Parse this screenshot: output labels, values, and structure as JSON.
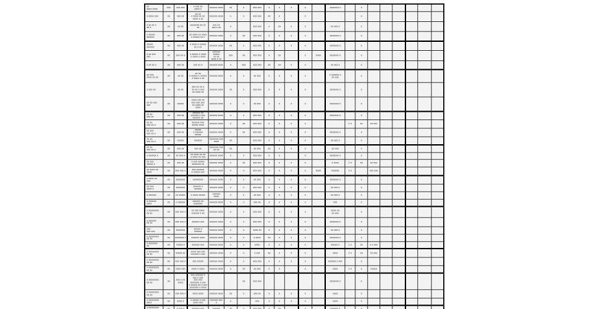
{
  "page": {
    "background": "#ffffff"
  },
  "table": {
    "colors": {
      "grid": "#2e2e2e",
      "grid_thick": "#000000",
      "cell_background": "#f3f3f3",
      "cell_rim": "#ffffff",
      "text": "#161616",
      "page": "#ffffff"
    },
    "column_count": 22,
    "row_count": 34,
    "thick_cols_after": [
      3,
      11,
      13,
      19
    ],
    "thick_rows_after": [
      4,
      7,
      10,
      14,
      18,
      22,
      27,
      30,
      33
    ],
    "rows": [
      [
        "xx\nxxxx xxxx",
        "xxx",
        "xxx xxx",
        "x  xxx xx\nxxxx x",
        "xxxxxx xxxx",
        "xx",
        "x",
        "xxx xxx",
        "x",
        "x",
        "x",
        "x",
        "",
        "xxxxxxx x",
        "",
        "x",
        "",
        "",
        "",
        "",
        "",
        ""
      ],
      [
        "x xxxx xxx",
        "xx",
        "xxx xx",
        "xx xx\nx xxxx xx xx\nxxxx x xx",
        "xxxxxx xxxx",
        "x",
        "x",
        "xxx xxx",
        "xx",
        "x",
        "",
        "x",
        "",
        "",
        "",
        "x",
        "",
        "",
        "",
        "",
        "",
        ""
      ],
      [
        "x xx  xx x\nxx x",
        "xx",
        "xx xx",
        "xxxxxxx xx  xx\nxx",
        "xxx xx\nxxx x xx",
        "x",
        "",
        "xxx xxx",
        "x",
        "xx",
        "x",
        "x",
        "",
        "xx xxx x",
        "",
        "x",
        "",
        "",
        "",
        "",
        "",
        ""
      ],
      [
        "x xxxxx\nxxxxxx",
        "xx",
        "xxx xx",
        "xx xxxx xx xxxx\nx xxxxx xx x",
        "xxxxxx xxxx",
        "x",
        "xx",
        "xxx xxx",
        "x",
        "x",
        "x",
        "x",
        "",
        "xxxxxxx x",
        "",
        "x",
        "",
        "",
        "",
        "",
        "",
        ""
      ],
      [
        "xxxxx\nxxxxxx",
        "xx",
        "xxx xx",
        "x xxxx x xxxxx\nxx x  xx",
        "xxxxxx xxxx",
        "xx",
        "x",
        "xxx xxx",
        "x",
        "x",
        "x",
        "x",
        "",
        "xxxxxxx x",
        "",
        "x",
        "",
        "",
        "",
        "",
        "",
        ""
      ],
      [
        "x xx  xxx\nxxx",
        "xx",
        "xxx xx x",
        "x xxxxx x xxxx\nx xxxx x xxxx",
        "xxxxxx xxxxx\nxx xx\nxxxx x xx",
        "xxx",
        "xx",
        "xxx xxx",
        "x",
        "xx",
        "",
        "x",
        "xxxx",
        "xxxxxxx x",
        "",
        "x",
        "",
        "",
        "",
        "",
        "",
        ""
      ],
      [
        "x xx  xx x",
        "xx",
        "xxx xx",
        "xxx xx x",
        "xxxxxx xxxx",
        "x",
        "xxx",
        "xxx xxx",
        "xx",
        "xx",
        "x",
        "x",
        "",
        "xx xxx x",
        "",
        "x",
        "",
        "",
        "",
        "",
        "",
        ""
      ],
      [
        "xx xxx\nxxxx xx xx",
        "xx",
        "xx xx",
        "xx xx\nx xxxxx x xxxxx\nx xxxx x xx",
        "xxxxxx xxxx",
        "x",
        "x",
        "xx xxx",
        "x",
        "x",
        "x",
        "x",
        "",
        "x xxxxxx x\nxx xxx",
        "",
        "x",
        "",
        "",
        "",
        "",
        "",
        ""
      ],
      [
        "x xxx  xx",
        "xx",
        "xx xx",
        "xxx xx xx x\nxx xx x xxx\nxx xxxx xx",
        "xxxxxx xxxx",
        "xx",
        "x",
        "xxx xxx",
        "x",
        "x",
        "x",
        "x",
        "",
        "xxxxxxx x",
        "",
        "x",
        "",
        "",
        "",
        "",
        "",
        ""
      ],
      [
        "xx xx xxx\nxxx",
        "xx",
        "xxxxx",
        "xxxx xxx xx\nxxx xxx  xxx\nxx xxxx xx\nxxxx",
        "xxxxxx xxxx",
        "x",
        "x",
        "xx xxx",
        "x",
        "x",
        "x",
        "x",
        "",
        "xxxxxxx x",
        "",
        "x",
        "",
        "",
        "",
        "",
        "",
        ""
      ],
      [
        "xx xx\nxxx xx",
        "xx",
        "xxx xx",
        "xxxxxx xx\nxxxxxx x xxx\nxxxxxx xx",
        "xxxxxx xxxx",
        "x",
        "x",
        "xxx xxx",
        "x",
        "x",
        "x",
        "x",
        "",
        "xxxxxxx x",
        "",
        "x",
        "",
        "",
        "",
        "",
        "",
        ""
      ],
      [
        "xx xx\nxxx  xx x",
        "xx",
        "xxx xx",
        "xxxxxx xxx\nxxxxx xxxx",
        "xxxxxx xxxx",
        "x",
        "xx",
        "xxx xxx",
        "x",
        "x",
        "x",
        "x",
        "",
        "",
        "1 x",
        "xx",
        "xx xxx",
        "",
        "",
        "",
        "",
        ""
      ],
      [
        "xx xxx\nxxx  xx x",
        "xx",
        "xxx xx",
        "xxxxx\nx xxxxxx\nxxxxx",
        "xxxxxx xxxx",
        "x",
        "xx",
        "xxx xxx",
        "x",
        "x",
        "x",
        "x",
        "",
        "xxxxxxx x",
        "",
        "x",
        "",
        "",
        "",
        "",
        "",
        ""
      ],
      [
        "xx xx\nxxx  xx x",
        "xx",
        "xxxxx",
        "xxxxxx",
        "xxxxxxx xxx\nxxxx",
        "xx",
        "",
        "xxx xxx",
        "x",
        "x",
        "x",
        "x",
        "",
        "xx xxx x",
        "",
        "x",
        "",
        "",
        "",
        "",
        "",
        ""
      ],
      [
        "xx xx\nxxx  xx x",
        "xx",
        "xxx xx",
        "xxx xx",
        "xxxxxxx xxx\nxx xx",
        "xx",
        "",
        "xx xxx",
        "xx",
        "x",
        "x",
        "x",
        "",
        "xx xxx",
        "",
        "x",
        "",
        "",
        "",
        "",
        "",
        ""
      ],
      [
        "x xxxxxx x",
        "xx",
        "xx xxx x",
        "xx xxxx xx  xx\nx xxxx xx xxx",
        "xxxxxx xxxx",
        "x",
        "x",
        "xxx xxx",
        "x",
        "x",
        "",
        "x",
        "",
        "xxxxxxx x",
        "",
        "x",
        "",
        "",
        "",
        "",
        "",
        ""
      ],
      [
        "xx xxx\nxxxxx x",
        "xx",
        "xxx xx",
        "x  xxx xxxxx\nxxxxxxx xx",
        "xxxxxx xxxx",
        "x",
        "xx",
        "xxx xxx",
        "x",
        "x",
        "x",
        "x",
        "",
        "x xxxx",
        "1 x",
        "xx",
        "xx xxx",
        "",
        "",
        "",
        "",
        ""
      ],
      [
        "xx xxxx xx\nxxxx",
        "xx",
        "xxx xxx x",
        "xxx xxxxxx\nx xxxxx xxx",
        "xxxxxx xxxx",
        "x",
        "x",
        "xxx xxx",
        "x",
        "x",
        "x",
        "x",
        "xxxx",
        "xxxxxx",
        "1 x",
        "",
        "xxx xxx",
        "",
        "",
        "",
        "",
        ""
      ],
      [
        "x xxxx xx\nxxx",
        "xx",
        "xxxxxxx",
        "xxxxxxxx",
        "xxxxxx xxxx",
        "x",
        "x",
        "xx xxx",
        "x",
        "x",
        "x",
        "x",
        "",
        "xxxxxxx x",
        "",
        "x",
        "",
        "",
        "",
        "",
        "",
        ""
      ],
      [
        "xx xxx\nxxxx x",
        "xx",
        "xxxxxxx",
        "xxxxxx x\nxxxxxx",
        "xxxxxx xxxx",
        "x",
        "x",
        "xxx xxx",
        "x",
        "x",
        "x",
        "x",
        "",
        "xx xxx x",
        "",
        "x",
        "",
        "",
        "",
        "",
        "",
        ""
      ],
      [
        "x xxxxxx",
        "xx",
        "xx xxxxx",
        "x xxxx xxxxx",
        "xxxxxx\nxxxx",
        "x",
        "x",
        "xx xxx",
        "x",
        "x",
        "x",
        "x",
        "",
        "xx xxx x",
        "",
        "x",
        "",
        "",
        "",
        "",
        "",
        ""
      ],
      [
        "x xxxxxx\nxxxx",
        "xx",
        "x xxxxxx",
        "xxxxxx xx\nxxxxxxx",
        "xxxxxx xxxx",
        "x",
        "x",
        "xxx xx",
        "x",
        "x",
        "x",
        "x",
        "",
        "xxx",
        "",
        "x",
        "",
        "",
        "",
        "",
        "",
        ""
      ],
      [
        "x xxxxxxxx\nxx xx",
        "xx",
        "xxx xxx x",
        "xx xxx  xxxx\nxxxxxx x xx",
        "xxxxxx xxxx",
        "x",
        "x",
        "xxx xxx",
        "x",
        "x",
        "x",
        "x",
        "",
        "xxxx xx\nxx xxx",
        "",
        "x",
        "",
        "",
        "",
        "",
        "",
        ""
      ],
      [
        "x xxxxxx\nxx xx",
        "xx",
        "xxx xxx x",
        "xxxxxx xxx",
        "xxxxxx xxxx",
        "x",
        "x",
        "xxx xxx",
        "x",
        "x",
        "x",
        "x",
        "",
        "xxxxxxx x",
        "",
        "x",
        "",
        "",
        "",
        "",
        "",
        ""
      ],
      [
        "xxx\nxxx xxx",
        "xx",
        "xxxxxxx",
        "xxxxx x\nxxxxxx",
        "xxxxxx xxxx",
        "x",
        "x",
        "xxxx xx",
        "x",
        "x",
        "x",
        "x",
        "",
        "xx xxx x",
        "",
        "x",
        "",
        "",
        "",
        "",
        "",
        ""
      ],
      [
        "x xxxxxxxx\nxx xx",
        "xx",
        "xxxxxxx x",
        "xxxxxx xxxx",
        "xxxxxx xxxx",
        "x",
        "x",
        "x xxxx",
        "xx",
        "x",
        "x",
        "x",
        "",
        "xxxxxxx x",
        "",
        "x",
        "",
        "",
        "",
        "",
        "",
        ""
      ],
      [
        "x xxxxxxx\nxx",
        "xx",
        "xxxxx x",
        "xxxxxx xxx",
        "xxxxxx xxxx",
        "x",
        "x",
        "xxxx",
        "x",
        "x",
        "x",
        "x",
        "",
        "xxxxx x",
        "1 x",
        "xx",
        "x x xxx",
        "",
        "",
        "",
        "",
        ""
      ],
      [
        "x xxxxxxxx\nxx xx",
        "xx",
        "xxxxx xx",
        "xxxx xxx  xxx\nxxxxxx x  xxx",
        "xxxxxx xxxx",
        "x",
        "x",
        "x xxx",
        "xx",
        "x",
        "x",
        "x",
        "",
        "xxxx",
        "1 x",
        "xx",
        "xx xxx",
        "",
        "",
        "",
        "",
        ""
      ],
      [
        "x xxxxxxxx\nxx xx",
        "xx",
        "xxx xxx x",
        "xxx xxxxx",
        "xxxxxx xxxx",
        "x",
        "x",
        "xxx xxx",
        "x",
        "x",
        "x",
        "x",
        "",
        "xxxxxx x xxx",
        "",
        "x",
        "",
        "",
        "",
        "",
        "",
        ""
      ],
      [
        "x xxxxxxxx\nxx xx",
        "xx",
        "xxxx xxx",
        "xxxx x  xxxx",
        "xxxxxx xxxx",
        "x",
        "xx",
        "xx xxx",
        "x",
        "x",
        "",
        "x",
        "",
        "xxxx",
        "1 x",
        "x",
        "xxxxx",
        "",
        "",
        "",
        "",
        ""
      ],
      [
        "x xxxxxxxx\nxx xx",
        "xx",
        "xxx x xx\nxxxx",
        "xxx xxxxxx  x\nxxx x xxx\nxxx xxx\nxxxxxxx x  xxx\nx xxxxx  xx x xxx\nxxxxxxx x  xxxx",
        "",
        "",
        "xx",
        "xxx xxx",
        "",
        "",
        "",
        "",
        "",
        "xxxxxxx x",
        "",
        "x",
        "",
        "",
        "",
        "",
        "",
        ""
      ],
      [
        "x xxxxxxxx\nxx xx",
        "xx",
        "xxx xxx x",
        "xxxx xxxx",
        "xxxxxx xxxx",
        "xx",
        "x",
        "xxx xx",
        "x",
        "x",
        "x",
        "x",
        "",
        "xxxx",
        "",
        "x",
        "",
        "",
        "",
        "",
        "",
        ""
      ],
      [
        "x xxxxxxxx\nxxxx",
        "xx",
        "xxxx x",
        "x xxxxx x xxx\nxxxx  xxx",
        "xxxxxx xxx x",
        "x",
        "",
        "xxx",
        "x",
        "x",
        "x",
        "x",
        "",
        "xxxx",
        "",
        "x",
        "",
        "",
        "",
        "",
        "",
        ""
      ],
      [
        "x xxxxxxxx\nxx xx",
        "xx",
        "x xxx  x",
        "xxxxxx xxx",
        "xxxxxx",
        "xx",
        "x",
        "xxx xxx",
        "x",
        "xx",
        "",
        "x",
        "",
        "xxxxxx x",
        "",
        "x",
        "",
        "",
        "",
        "",
        "",
        ""
      ]
    ]
  }
}
